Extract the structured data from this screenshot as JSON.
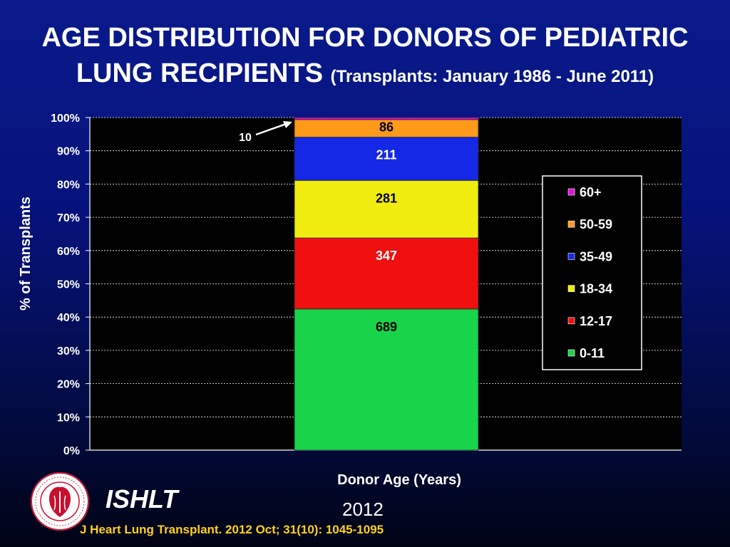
{
  "slide": {
    "title_line1": "AGE DISTRIBUTION FOR DONORS OF PEDIATRIC",
    "title_line2_main": "LUNG RECIPIENTS",
    "title_line2_sub": "(Transplants: January 1986 - June 2011)",
    "org": "ISHLT",
    "year": "2012",
    "citation": "J Heart Lung Transplant.  2012 Oct; 31(10): 1045-1095",
    "logo_ring_text": "INTERNATIONAL SOCIETY FOR HEART & LUNG TRANSPLANTATION"
  },
  "chart_data": {
    "type": "bar",
    "stacked": "percent",
    "title": "",
    "xlabel": "Donor Age (Years)",
    "ylabel": "% of Transplants",
    "ylim": [
      0,
      100
    ],
    "yticks": [
      "0%",
      "10%",
      "20%",
      "30%",
      "40%",
      "50%",
      "60%",
      "70%",
      "80%",
      "90%",
      "100%"
    ],
    "categories": [
      ""
    ],
    "grid": true,
    "legend_position": "right",
    "series": [
      {
        "name": "0-11",
        "count": 689,
        "color": "#18d44a",
        "label_color": "#000000"
      },
      {
        "name": "12-17",
        "count": 347,
        "color": "#f01010",
        "label_color": "#ffffff"
      },
      {
        "name": "18-34",
        "count": 281,
        "color": "#f0ec10",
        "label_color": "#000000"
      },
      {
        "name": "35-49",
        "count": 211,
        "color": "#1428e6",
        "label_color": "#ffffff"
      },
      {
        "name": "50-59",
        "count": 86,
        "color": "#ff9a1a",
        "label_color": "#000000"
      },
      {
        "name": "60+",
        "count": 10,
        "color": "#e010e0",
        "label_color": "#000000"
      }
    ],
    "annotation": {
      "text": "10",
      "series": "60+"
    }
  }
}
